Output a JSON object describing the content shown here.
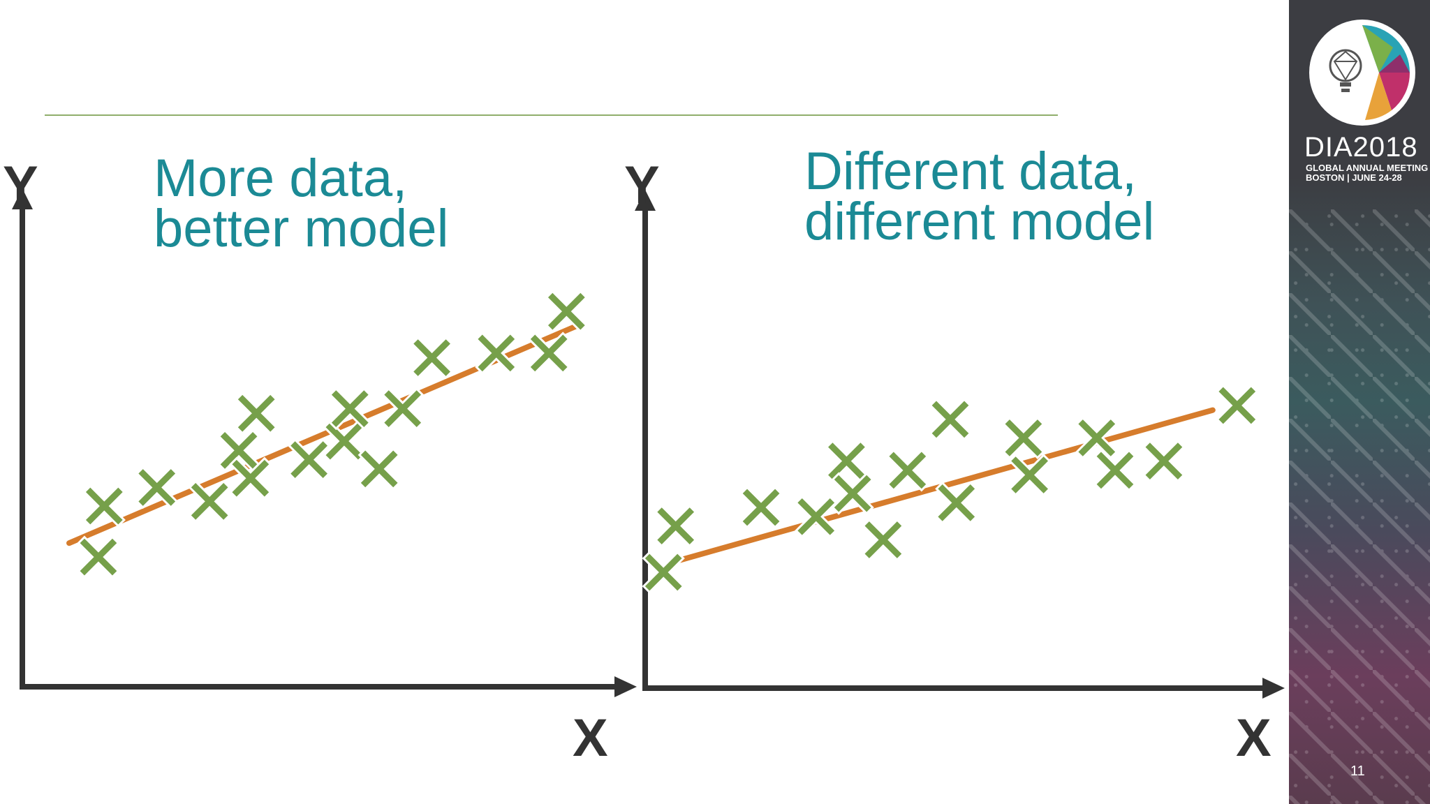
{
  "chart_data": [
    {
      "type": "scatter",
      "title": [
        "More data,",
        "better model"
      ],
      "xlabel": "X",
      "ylabel": "Y",
      "xlim": [
        0,
        10
      ],
      "ylim": [
        0,
        10
      ],
      "grid": false,
      "marker": "x",
      "marker_color": "#76a04a",
      "fit_color": "#d67c2c",
      "points": [
        {
          "x": 1.3,
          "y": 2.8
        },
        {
          "x": 1.4,
          "y": 3.9
        },
        {
          "x": 2.3,
          "y": 4.3
        },
        {
          "x": 3.2,
          "y": 4.0
        },
        {
          "x": 3.7,
          "y": 5.1
        },
        {
          "x": 3.9,
          "y": 4.5
        },
        {
          "x": 4.0,
          "y": 5.9
        },
        {
          "x": 4.9,
          "y": 4.9
        },
        {
          "x": 5.5,
          "y": 5.3
        },
        {
          "x": 5.6,
          "y": 6.0
        },
        {
          "x": 6.1,
          "y": 4.7
        },
        {
          "x": 6.5,
          "y": 6.0
        },
        {
          "x": 7.0,
          "y": 7.1
        },
        {
          "x": 8.1,
          "y": 7.2
        },
        {
          "x": 9.0,
          "y": 7.2
        },
        {
          "x": 9.3,
          "y": 8.1
        }
      ],
      "fit_line": [
        {
          "x": 0.8,
          "y": 3.1
        },
        {
          "x": 9.5,
          "y": 7.8
        }
      ]
    },
    {
      "type": "scatter",
      "title": [
        "Different data,",
        "different model"
      ],
      "xlabel": "X",
      "ylabel": "Y",
      "xlim": [
        0,
        10
      ],
      "ylim": [
        0,
        10
      ],
      "grid": false,
      "marker": "x",
      "marker_color": "#76a04a",
      "fit_color": "#d67c2c",
      "points": [
        {
          "x": 0.3,
          "y": 2.5
        },
        {
          "x": 0.5,
          "y": 3.5
        },
        {
          "x": 1.9,
          "y": 3.9
        },
        {
          "x": 2.8,
          "y": 3.7
        },
        {
          "x": 3.3,
          "y": 4.9
        },
        {
          "x": 3.4,
          "y": 4.2
        },
        {
          "x": 3.9,
          "y": 3.2
        },
        {
          "x": 4.3,
          "y": 4.7
        },
        {
          "x": 5.0,
          "y": 5.8
        },
        {
          "x": 5.1,
          "y": 4.0
        },
        {
          "x": 6.2,
          "y": 5.4
        },
        {
          "x": 6.3,
          "y": 4.6
        },
        {
          "x": 7.4,
          "y": 5.4
        },
        {
          "x": 7.7,
          "y": 4.7
        },
        {
          "x": 8.5,
          "y": 4.9
        },
        {
          "x": 9.7,
          "y": 6.1
        }
      ],
      "fit_line": [
        {
          "x": 0.4,
          "y": 2.7
        },
        {
          "x": 9.3,
          "y": 6.0
        }
      ]
    }
  ],
  "sidebar": {
    "logo_mark": "DIA lightbulb-head logo",
    "logo_title": "DIA2018",
    "logo_line1": "GLOBAL ANNUAL MEETING",
    "logo_line2": "BOSTON | JUNE 24-28"
  },
  "page_number": "11"
}
